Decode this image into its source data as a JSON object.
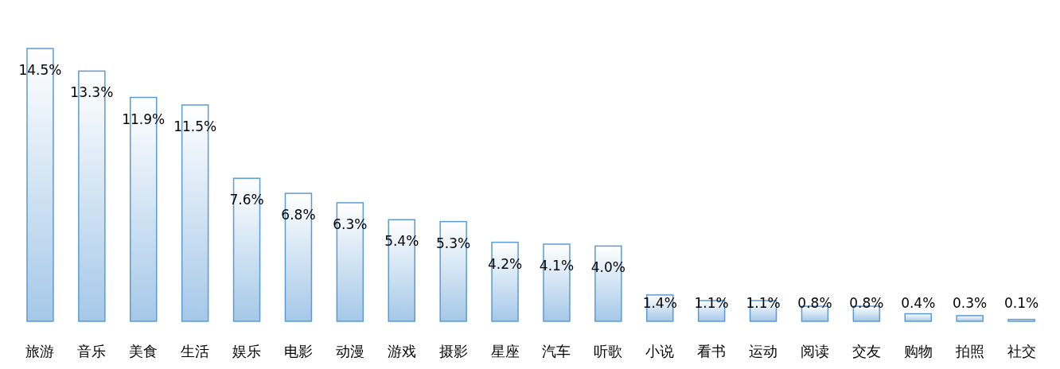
{
  "chart_data": {
    "type": "bar",
    "categories": [
      "旅游",
      "音乐",
      "美食",
      "生活",
      "娱乐",
      "电影",
      "动漫",
      "游戏",
      "摄影",
      "星座",
      "汽车",
      "听歌",
      "小说",
      "看书",
      "运动",
      "阅读",
      "交友",
      "购物",
      "拍照",
      "社交"
    ],
    "values": [
      14.5,
      13.3,
      11.9,
      11.5,
      7.6,
      6.8,
      6.3,
      5.4,
      5.3,
      4.2,
      4.1,
      4.0,
      1.4,
      1.1,
      1.1,
      0.8,
      0.8,
      0.4,
      0.3,
      0.1
    ],
    "value_labels": [
      "14.5%",
      "13.3%",
      "11.9%",
      "11.5%",
      "7.6%",
      "6.8%",
      "6.3%",
      "5.4%",
      "5.3%",
      "4.2%",
      "4.1%",
      "4.0%",
      "1.4%",
      "1.1%",
      "1.1%",
      "0.8%",
      "0.8%",
      "0.4%",
      "0.3%",
      "0.1%"
    ],
    "color": "#5b9bd5"
  }
}
